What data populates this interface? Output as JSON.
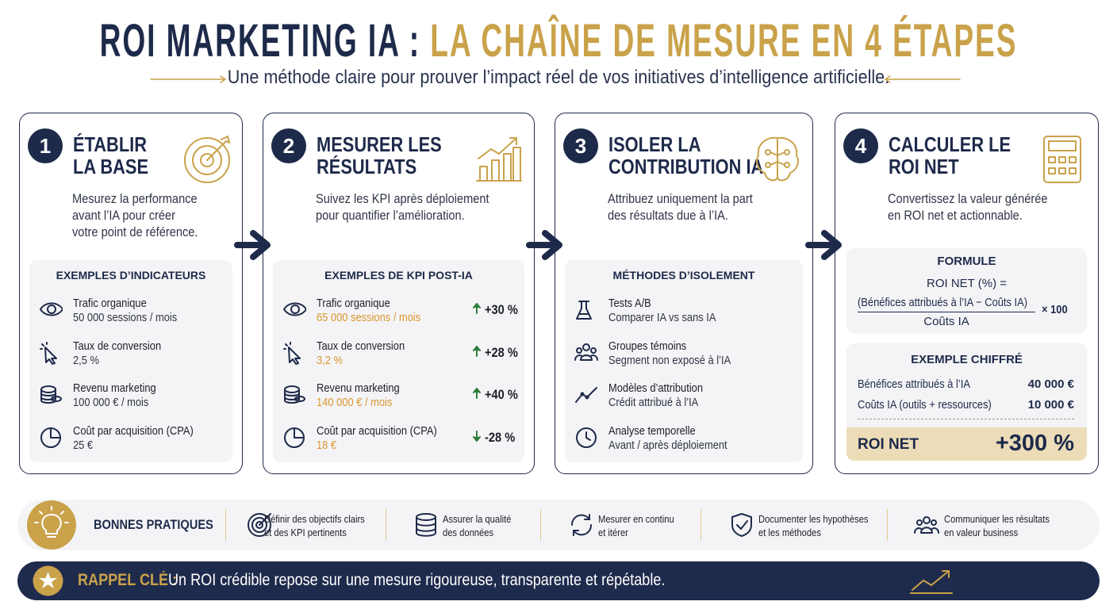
{
  "title": {
    "part1": "ROI MARKETING IA :",
    "part2": "LA CHAÎNE DE MESURE EN 4 ÉTAPES"
  },
  "subtitle": "Une méthode claire pour prouver l’impact réel de vos initiatives d’intelligence artificielle.",
  "steps": [
    {
      "number": "1",
      "title": [
        "ÉTABLIR",
        "LA BASE"
      ],
      "description": [
        "Mesurez la performance",
        "avant l’IA pour créer",
        "votre point de référence."
      ],
      "box_title": "EXEMPLES D’INDICATEURS",
      "items": [
        {
          "label": "Trafic organique",
          "value": "50 000 sessions / mois"
        },
        {
          "label": "Taux de conversion",
          "value": "2,5 %"
        },
        {
          "label": "Revenu marketing",
          "value": "100 000 € / mois"
        },
        {
          "label": "Coût par acquisition (CPA)",
          "value": "25 €"
        }
      ]
    },
    {
      "number": "2",
      "title": [
        "MESURER LES",
        "RÉSULTATS"
      ],
      "description": [
        "Suivez les KPI après déploiement",
        "pour quantifier l’amélioration."
      ],
      "box_title": "EXEMPLES DE KPI POST-IA",
      "items": [
        {
          "label": "Trafic organique",
          "value": "65 000 sessions / mois",
          "change": "+30 %"
        },
        {
          "label": "Taux de conversion",
          "value": "3,2 %",
          "change": "+28 %"
        },
        {
          "label": "Revenu marketing",
          "value": "140 000 € / mois",
          "change": "+40 %"
        },
        {
          "label": "Coût par acquisition (CPA)",
          "value": "18 €",
          "change": "-28 %"
        }
      ]
    },
    {
      "number": "3",
      "title": [
        "ISOLER LA",
        "CONTRIBUTION IA"
      ],
      "description": [
        "Attribuez uniquement la part",
        "des résultats due à l’IA."
      ],
      "box_title": "MÉTHODES D’ISOLEMENT",
      "items": [
        {
          "label": "Tests A/B",
          "value": "Comparer IA vs sans IA"
        },
        {
          "label": "Groupes témoins",
          "value": "Segment non exposé à l’IA"
        },
        {
          "label": "Modèles d’attribution",
          "value": "Crédit attribué à l’IA"
        },
        {
          "label": "Analyse temporelle",
          "value": "Avant / après déploiement"
        }
      ]
    },
    {
      "number": "4",
      "title": [
        "CALCULER LE",
        "ROI NET"
      ],
      "description": [
        "Convertissez la valeur générée",
        "en ROI net et actionnable."
      ],
      "formula": {
        "title": "FORMULE",
        "lhs": "ROI NET (%) =",
        "numerator": "(Bénéfices attribués à l’IA − Coûts IA)",
        "denominator": "Coûts IA",
        "multiplier": "× 100"
      },
      "example": {
        "title": "EXEMPLE CHIFFRÉ",
        "rows": [
          {
            "label": "Bénéfices attribués à l’IA",
            "value": "40 000 €"
          },
          {
            "label": "Coûts IA (outils + ressources)",
            "value": "10 000 €"
          }
        ],
        "result_label": "ROI NET",
        "result_value": "+300 %"
      }
    }
  ],
  "practices": {
    "title": "BONNES PRATIQUES",
    "items": [
      [
        "Définir des objectifs clairs",
        "et des KPI pertinents"
      ],
      [
        "Assurer la qualité",
        "des données"
      ],
      [
        "Mesurer en continu",
        "et itérer"
      ],
      [
        "Documenter les hypothèses",
        "et les méthodes"
      ],
      [
        "Communiquer les résultats",
        "en valeur business"
      ]
    ]
  },
  "reminder": {
    "label": "RAPPEL CLÉ :",
    "text": "Un ROI crédible repose sur une mesure rigoureuse, transparente et répétable."
  }
}
